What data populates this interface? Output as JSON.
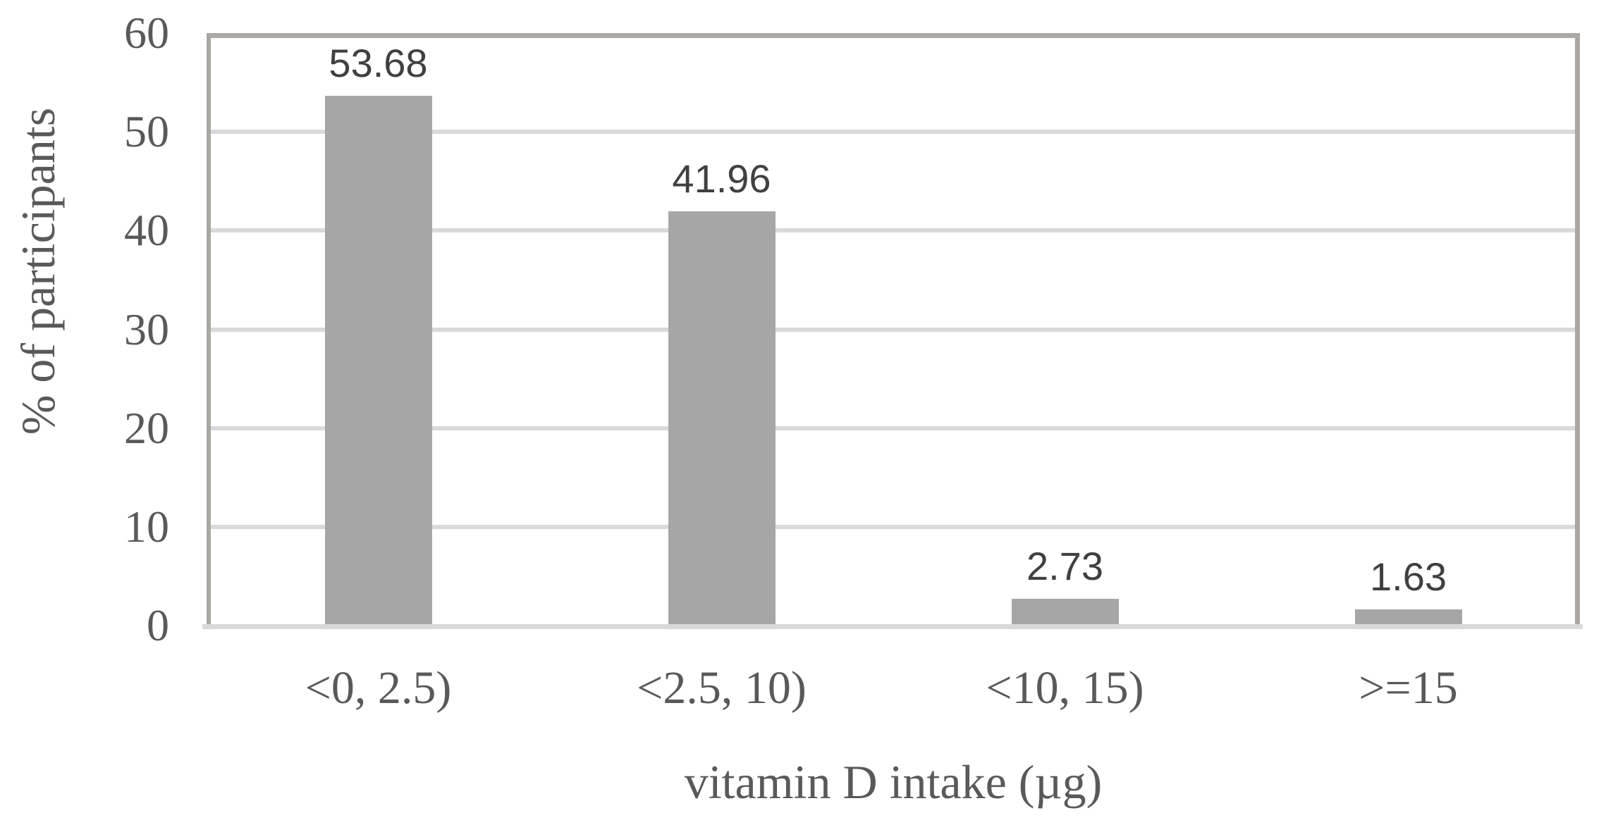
{
  "chart_data": {
    "type": "bar",
    "title": "",
    "categories": [
      "<0, 2.5)",
      "<2.5, 10)",
      "<10, 15)",
      ">=15"
    ],
    "values": [
      53.68,
      41.96,
      2.73,
      1.63
    ],
    "data_labels": [
      "53.68",
      "41.96",
      "2.73",
      "1.63"
    ],
    "xlabel": "vitamin D intake (µg)",
    "ylabel": "% of participants",
    "ylim": [
      0,
      60
    ],
    "yticks": [
      0,
      10,
      20,
      30,
      40,
      50,
      60
    ],
    "grid": true,
    "legend_position": "none",
    "colors": {
      "bar_fill": "#a6a6a6",
      "gridline": "#d9d9d9",
      "plot_border": "#aba7a4",
      "x_axis_line": "#d9d9d9",
      "tick_label_text": "#595959",
      "axis_title_text": "#595959",
      "data_label_text": "#404040",
      "background": "#ffffff"
    }
  }
}
